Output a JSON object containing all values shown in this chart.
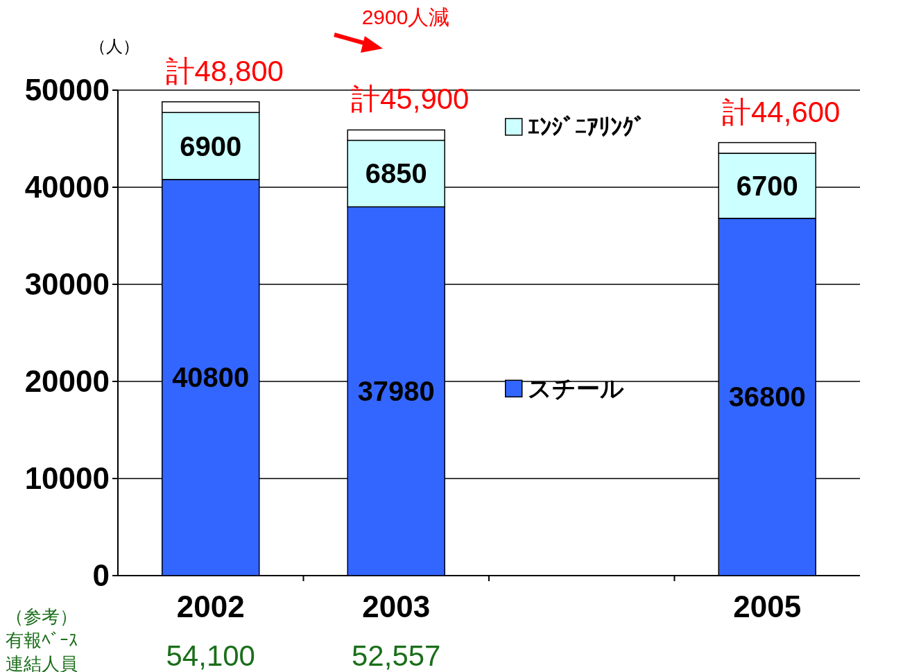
{
  "chart_data": {
    "type": "bar",
    "stacked": true,
    "ylabel": "（人）",
    "categories": [
      "2002",
      "2003",
      null,
      "2005"
    ],
    "series": [
      {
        "name": "スチール",
        "color": "#3366ff",
        "values": [
          40800,
          37980,
          null,
          36800
        ],
        "value_labels": [
          "40800",
          "37980",
          null,
          "36800"
        ]
      },
      {
        "name": "ｴﾝｼﾞﾆｱﾘﾝｸﾞ",
        "color": "#ccffff",
        "values": [
          6900,
          6850,
          null,
          6700
        ],
        "value_labels": [
          "6900",
          "6850",
          null,
          "6700"
        ]
      },
      {
        "color": "#ffffff",
        "values": [
          1100,
          1070,
          null,
          1100
        ]
      }
    ],
    "totals": [
      "計48,800",
      "計45,900",
      null,
      "計44,600"
    ],
    "ylim": [
      0,
      50000
    ],
    "yticks": [
      0,
      10000,
      20000,
      30000,
      40000,
      50000
    ],
    "grid": "y",
    "legend": "top",
    "annotations": [
      "2900人減",
      "（参考）",
      "有報ﾍﾞｰｽ",
      "連結人員",
      "54,100",
      "52,557"
    ]
  }
}
